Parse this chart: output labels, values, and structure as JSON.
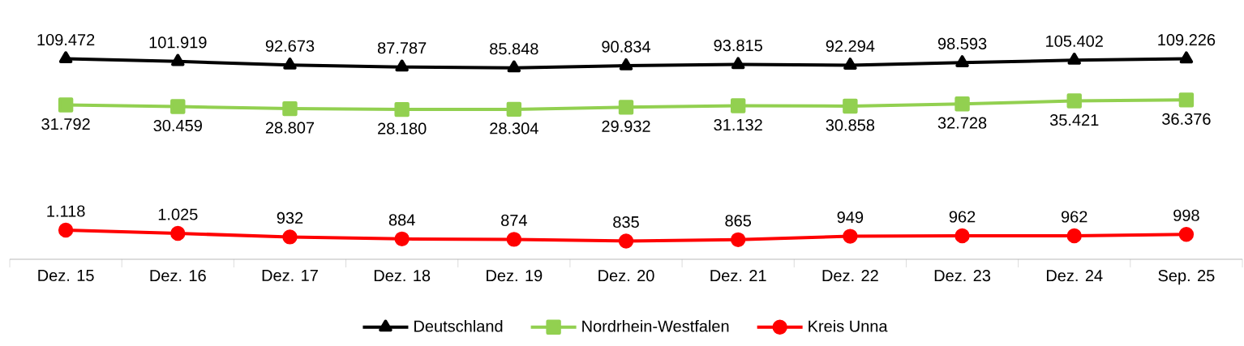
{
  "chart_data": {
    "type": "line",
    "categories": [
      "Dez. 15",
      "Dez. 16",
      "Dez. 17",
      "Dez. 18",
      "Dez. 19",
      "Dez. 20",
      "Dez. 21",
      "Dez. 22",
      "Dez. 23",
      "Dez. 24",
      "Sep. 25"
    ],
    "series": [
      {
        "name": "Deutschland",
        "color": "#000000",
        "marker": "triangle",
        "values": [
          109472,
          101919,
          92673,
          87787,
          85848,
          90834,
          93815,
          92294,
          98593,
          105402,
          109226
        ],
        "value_labels": [
          "109.472",
          "101.919",
          "92.673",
          "87.787",
          "85.848",
          "90.834",
          "93.815",
          "92.294",
          "98.593",
          "105.402",
          "109.226"
        ]
      },
      {
        "name": "Nordrhein-Westfalen",
        "color": "#92d050",
        "marker": "square",
        "values": [
          31792,
          30459,
          28807,
          28180,
          28304,
          29932,
          31132,
          30858,
          32728,
          35421,
          36376
        ],
        "value_labels": [
          "31.792",
          "30.459",
          "28.807",
          "28.180",
          "28.304",
          "29.932",
          "31.132",
          "30.858",
          "32.728",
          "35.421",
          "36.376"
        ]
      },
      {
        "name": "Kreis Unna",
        "color": "#ff0000",
        "marker": "circle",
        "values": [
          1118,
          1025,
          932,
          884,
          874,
          835,
          865,
          949,
          962,
          962,
          998
        ],
        "value_labels": [
          "1.118",
          "1.025",
          "932",
          "884",
          "874",
          "835",
          "865",
          "949",
          "962",
          "962",
          "998"
        ]
      }
    ],
    "log": true,
    "tick_labels": "x",
    "grid": false,
    "legend": "bottom",
    "line_style": "solid"
  }
}
